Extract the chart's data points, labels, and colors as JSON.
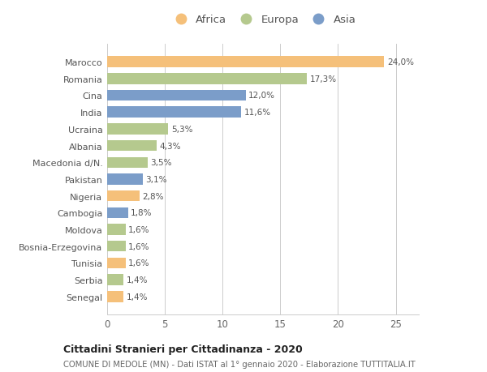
{
  "categories": [
    "Senegal",
    "Serbia",
    "Tunisia",
    "Bosnia-Erzegovina",
    "Moldova",
    "Cambogia",
    "Nigeria",
    "Pakistan",
    "Macedonia d/N.",
    "Albania",
    "Ucraina",
    "India",
    "Cina",
    "Romania",
    "Marocco"
  ],
  "values": [
    1.4,
    1.4,
    1.6,
    1.6,
    1.6,
    1.8,
    2.8,
    3.1,
    3.5,
    4.3,
    5.3,
    11.6,
    12.0,
    17.3,
    24.0
  ],
  "colors": [
    "#f5c07a",
    "#b5c98e",
    "#f5c07a",
    "#b5c98e",
    "#b5c98e",
    "#7b9dc9",
    "#f5c07a",
    "#7b9dc9",
    "#b5c98e",
    "#b5c98e",
    "#b5c98e",
    "#7b9dc9",
    "#7b9dc9",
    "#b5c98e",
    "#f5c07a"
  ],
  "labels": [
    "1,4%",
    "1,4%",
    "1,6%",
    "1,6%",
    "1,6%",
    "1,8%",
    "2,8%",
    "3,1%",
    "3,5%",
    "4,3%",
    "5,3%",
    "11,6%",
    "12,0%",
    "17,3%",
    "24,0%"
  ],
  "legend_labels": [
    "Africa",
    "Europa",
    "Asia"
  ],
  "legend_colors": [
    "#f5c07a",
    "#b5c98e",
    "#7b9dc9"
  ],
  "title": "Cittadini Stranieri per Cittadinanza - 2020",
  "subtitle": "COMUNE DI MEDOLE (MN) - Dati ISTAT al 1° gennaio 2020 - Elaborazione TUTTITALIA.IT",
  "xlim": [
    0,
    27
  ],
  "xticks": [
    0,
    5,
    10,
    15,
    20,
    25
  ],
  "bg_color": "#ffffff",
  "grid_color": "#cccccc",
  "bar_height": 0.65
}
